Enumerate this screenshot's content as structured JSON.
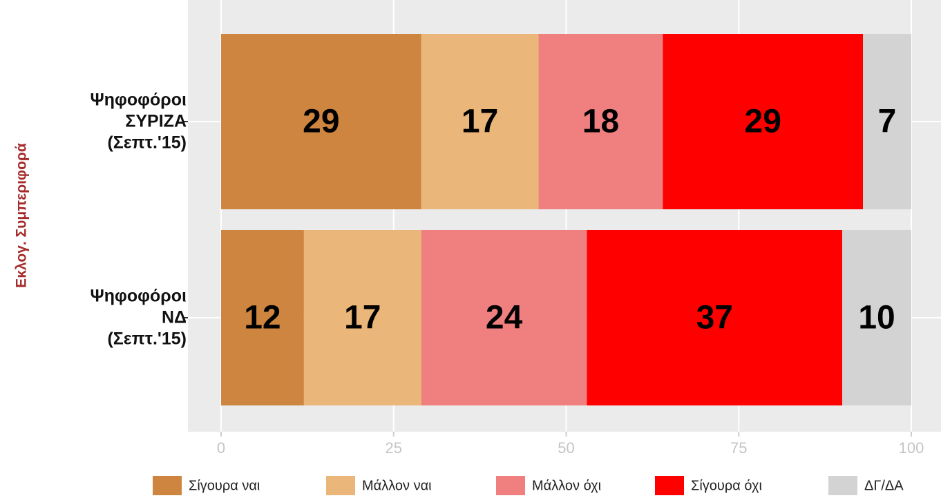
{
  "chart_data": {
    "type": "bar",
    "orientation": "horizontal",
    "stacked": true,
    "ylabel": "Εκλογ. Συμπεριφορά",
    "categories": [
      "Ψηφοφόροι\nΣΥΡΙΖΑ\n(Σεπτ.'15)",
      "Ψηφοφόροι\nΝΔ\n(Σεπτ.'15)"
    ],
    "series": [
      {
        "name": "Σίγουρα ναι",
        "color": "#cd853f",
        "values": [
          29,
          12
        ]
      },
      {
        "name": "Μάλλον ναι",
        "color": "#ebb679",
        "values": [
          17,
          17
        ]
      },
      {
        "name": "Μάλλον όχι",
        "color": "#f08080",
        "values": [
          18,
          24
        ]
      },
      {
        "name": "Σίγουρα όχι",
        "color": "#ff0000",
        "values": [
          29,
          37
        ]
      },
      {
        "name": "ΔΓ/ΔΑ",
        "color": "#d3d3d3",
        "values": [
          7,
          10
        ]
      }
    ],
    "xlim": [
      0,
      100
    ],
    "xticks": [
      0,
      25,
      50,
      75,
      100
    ],
    "grid": true,
    "legend": "bottom"
  }
}
